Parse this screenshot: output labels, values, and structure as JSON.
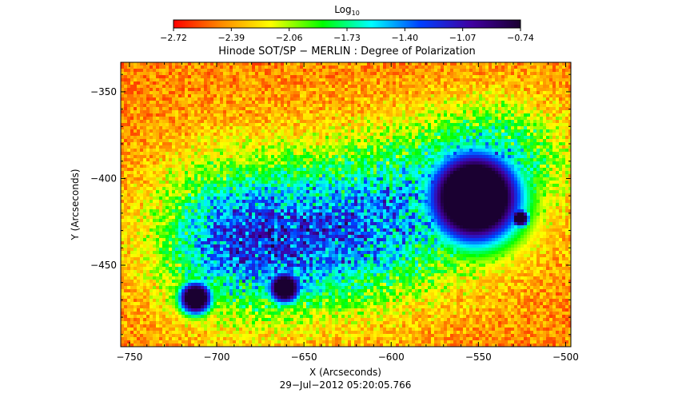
{
  "chart_data": {
    "type": "heatmap",
    "title": "Hinode SOT/SP − MERLIN : Degree of Polarization",
    "xlabel": "X (Arcseconds)",
    "ylabel": "Y (Arcseconds)",
    "timestamp": "29−Jul−2012 05:20:05.766",
    "colorbar": {
      "label": "Log",
      "label_sub": "10",
      "range": [
        -2.72,
        -0.74
      ],
      "ticks": [
        "−2.72",
        "−2.39",
        "−2.06",
        "−1.73",
        "−1.40",
        "−1.07",
        "−0.74"
      ],
      "colormap": [
        "#ff0000",
        "#ff8c00",
        "#ffff00",
        "#00ff00",
        "#00ffff",
        "#0040ff",
        "#4000a0",
        "#1a0030"
      ]
    },
    "xlim": [
      -755,
      -497
    ],
    "ylim": [
      -497,
      -333
    ],
    "xticks": [
      -750,
      -700,
      -650,
      -600,
      -550,
      -500
    ],
    "xtick_labels": [
      "−750",
      "−700",
      "−650",
      "−600",
      "−550",
      "−500"
    ],
    "yticks": [
      -350,
      -400,
      -450
    ],
    "ytick_labels": [
      "−350",
      "−400",
      "−450"
    ],
    "features": [
      {
        "name": "large sunspot",
        "x": -553,
        "y": -410,
        "level": -0.74
      },
      {
        "name": "small spot",
        "x": -713,
        "y": -468,
        "level": -0.8
      },
      {
        "name": "small spot",
        "x": -662,
        "y": -462,
        "level": -0.85
      },
      {
        "name": "pore",
        "x": -527,
        "y": -422,
        "level": -0.9
      }
    ]
  }
}
